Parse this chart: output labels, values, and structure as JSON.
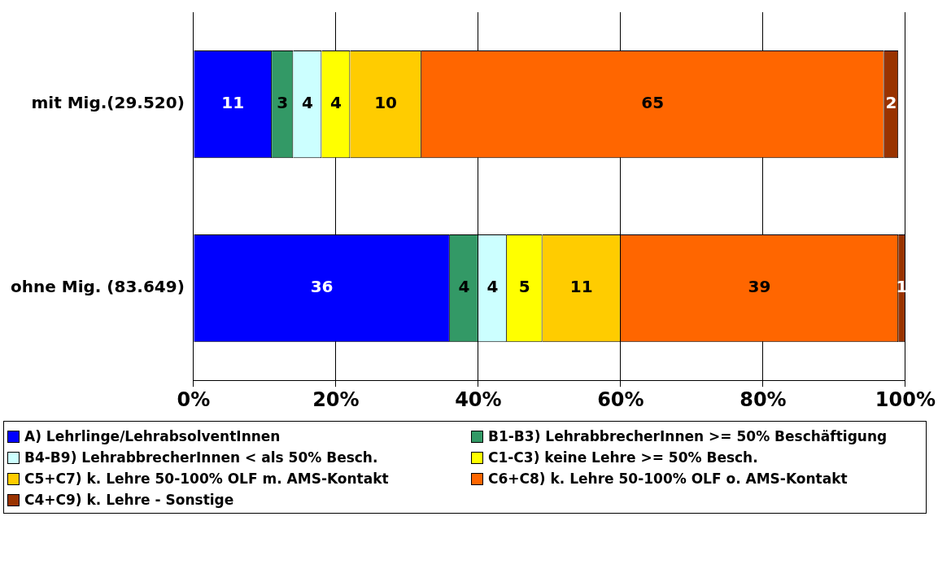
{
  "chart_data": {
    "type": "bar",
    "orientation": "horizontal",
    "stacked": true,
    "categories": [
      "mit Mig.(29.520)",
      "ohne Mig. (83.649)"
    ],
    "series": [
      {
        "name": "A) Lehrlinge/LehrabsolventInnen",
        "color": "#0000ff",
        "values": [
          11,
          36
        ]
      },
      {
        "name": "B1-B3) LehrabbrecherInnen >= 50% Beschäftigung",
        "color": "#339966",
        "values": [
          3,
          4
        ]
      },
      {
        "name": "B4-B9) LehrabbrecherInnen < als 50% Besch.",
        "color": "#ccffff",
        "values": [
          4,
          4
        ]
      },
      {
        "name": "C1-C3) keine Lehre >= 50% Besch.",
        "color": "#ffff00",
        "values": [
          4,
          5
        ]
      },
      {
        "name": "C5+C7) k. Lehre 50-100% OLF m. AMS-Kontakt",
        "color": "#ffcc00",
        "values": [
          10,
          11
        ]
      },
      {
        "name": "C6+C8) k. Lehre 50-100% OLF o. AMS-Kontakt",
        "color": "#ff6600",
        "values": [
          65,
          39
        ]
      },
      {
        "name": "C4+C9) k. Lehre - Sonstige",
        "color": "#993300",
        "values": [
          2,
          1
        ]
      }
    ],
    "xlim": [
      0,
      100
    ],
    "xticks": [
      {
        "value": 0,
        "label": "0%"
      },
      {
        "value": 20,
        "label": "20%"
      },
      {
        "value": 40,
        "label": "40%"
      },
      {
        "value": 60,
        "label": "60%"
      },
      {
        "value": 80,
        "label": "80%"
      },
      {
        "value": 100,
        "label": "100%"
      }
    ],
    "grid": "x",
    "legend": "bottom",
    "data_labels": true
  }
}
